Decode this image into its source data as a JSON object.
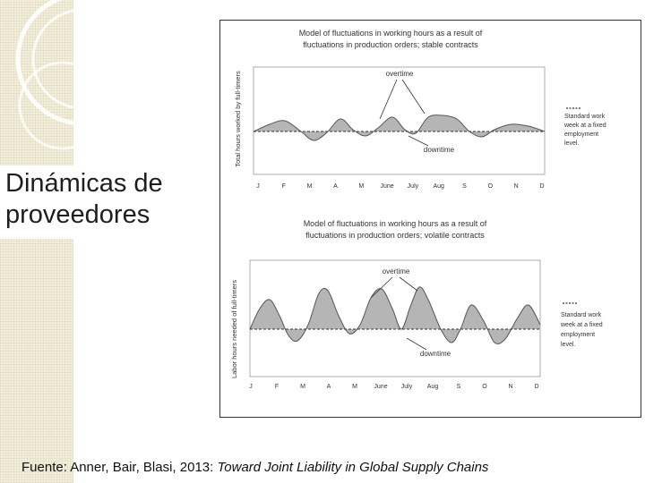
{
  "slide": {
    "title_line1": "Dinámicas de",
    "title_line2": "proveedores",
    "caption_prefix": "Fuente: Anner, Bair, Blasi, 2013: ",
    "caption_title": "Toward Joint Liability in Global Supply Chains"
  },
  "colors": {
    "area_fill": "#b5b5b5",
    "curve": "#555555",
    "baseline": "#333333",
    "title_text": "#1e1e1e"
  },
  "chart_data": [
    {
      "type": "area",
      "title_line1": "Model of fluctuations in working hours as a result of",
      "title_line2": "fluctuations in production orders; stable contracts",
      "ylabel": "Total hours worked by full-timers",
      "categories": [
        "J",
        "F",
        "M",
        "A",
        "M",
        "June",
        "July",
        "Aug",
        "S",
        "O",
        "N",
        "D"
      ],
      "annotations": {
        "overtime": "overtime",
        "downtime": "downtime"
      },
      "legend": {
        "line1": "Standard work",
        "line2": "week at a fixed",
        "line3": "employment",
        "line4": "level."
      },
      "baseline": 0,
      "ylim": [
        -1,
        1
      ]
    },
    {
      "type": "area",
      "title_line1": "Model of fluctuations in working hours as a result of",
      "title_line2": "fluctuations in production orders; volatile contracts",
      "ylabel": "Labor hours needed of full-timers",
      "categories": [
        "J",
        "F",
        "M",
        "A",
        "M",
        "June",
        "July",
        "Aug",
        "S",
        "O",
        "N",
        "D"
      ],
      "annotations": {
        "overtime": "overtime",
        "downtime": "downtime"
      },
      "legend": {
        "line1": "Standard work",
        "line2": "week at a fixed",
        "line3": "employment",
        "line4": "level."
      },
      "baseline": 0,
      "ylim": [
        -1,
        1
      ]
    }
  ]
}
